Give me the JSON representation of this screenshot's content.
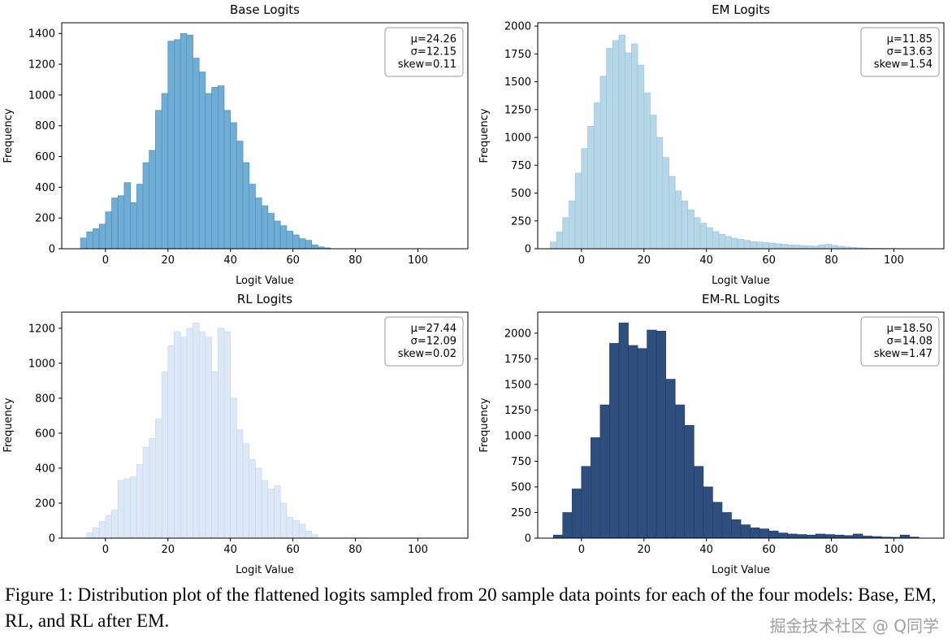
{
  "figure": {
    "caption": "Figure 1: Distribution plot of the flattened logits sampled from 20 sample data points for each of the four models: Base, EM, RL, and RL after EM.",
    "watermark": "掘金技术社区 @ Q同学"
  },
  "chart_data": [
    {
      "type": "histogram",
      "title": "Base Logits",
      "xlabel": "Logit Value",
      "ylabel": "Frequency",
      "stats": {
        "mu": "μ=24.26",
        "sigma": "σ=12.15",
        "skew": "skew=0.11"
      },
      "color": "#6fadd4",
      "edge_color": "#4f92bd",
      "xlim": [
        -14,
        116
      ],
      "ylim": [
        0,
        1470
      ],
      "xticks": [
        0,
        20,
        40,
        60,
        80,
        100
      ],
      "yticks": [
        0,
        200,
        400,
        600,
        800,
        1000,
        1200,
        1400
      ],
      "bin_start": -8,
      "bin_width": 2,
      "values": [
        70,
        110,
        130,
        160,
        240,
        330,
        345,
        430,
        300,
        420,
        560,
        640,
        900,
        1010,
        1350,
        1360,
        1400,
        1390,
        1240,
        1150,
        1010,
        1050,
        1060,
        900,
        820,
        700,
        560,
        420,
        330,
        280,
        230,
        180,
        150,
        115,
        90,
        65,
        55,
        25,
        12,
        6
      ]
    },
    {
      "type": "histogram",
      "title": "EM Logits",
      "xlabel": "Logit Value",
      "ylabel": "Frequency",
      "stats": {
        "mu": "μ=11.85",
        "sigma": "σ=13.63",
        "skew": "skew=1.54"
      },
      "color": "#b5d7e8",
      "edge_color": "#9fc6db",
      "xlim": [
        -14,
        116
      ],
      "ylim": [
        0,
        2030
      ],
      "xticks": [
        0,
        20,
        40,
        60,
        80,
        100
      ],
      "yticks": [
        0,
        250,
        500,
        750,
        1000,
        1250,
        1500,
        1750,
        2000
      ],
      "bin_start": -10,
      "bin_width": 2,
      "values": [
        60,
        150,
        280,
        430,
        680,
        900,
        1100,
        1310,
        1550,
        1800,
        1870,
        1920,
        1760,
        1840,
        1650,
        1400,
        1200,
        1000,
        820,
        650,
        520,
        430,
        350,
        280,
        230,
        190,
        155,
        130,
        110,
        95,
        85,
        75,
        65,
        60,
        55,
        50,
        45,
        40,
        35,
        32,
        28,
        26,
        24,
        35,
        40,
        30,
        22,
        16,
        12,
        8,
        6,
        5,
        4,
        3,
        3,
        2
      ]
    },
    {
      "type": "histogram",
      "title": "RL Logits",
      "xlabel": "Logit Value",
      "ylabel": "Frequency",
      "stats": {
        "mu": "μ=27.44",
        "sigma": "σ=12.09",
        "skew": "skew=0.02"
      },
      "color": "#dce8f6",
      "edge_color": "#c8daee",
      "xlim": [
        -14,
        116
      ],
      "ylim": [
        0,
        1292
      ],
      "xticks": [
        0,
        20,
        40,
        60,
        80,
        100
      ],
      "yticks": [
        0,
        200,
        400,
        600,
        800,
        1000,
        1200
      ],
      "bin_start": -6,
      "bin_width": 2,
      "values": [
        30,
        60,
        95,
        130,
        160,
        330,
        340,
        350,
        420,
        520,
        570,
        680,
        950,
        1100,
        1180,
        1150,
        1200,
        1230,
        1180,
        1150,
        950,
        1200,
        1180,
        800,
        620,
        540,
        450,
        400,
        330,
        280,
        300,
        200,
        120,
        100,
        80,
        40,
        20
      ]
    },
    {
      "type": "histogram",
      "title": "EM-RL Logits",
      "xlabel": "Logit Value",
      "ylabel": "Frequency",
      "stats": {
        "mu": "μ=18.50",
        "sigma": "σ=14.08",
        "skew": "skew=1.47"
      },
      "color": "#2e4e7e",
      "edge_color": "#243f66",
      "xlim": [
        -14,
        116
      ],
      "ylim": [
        0,
        2205
      ],
      "xticks": [
        0,
        20,
        40,
        60,
        80,
        100
      ],
      "yticks": [
        0,
        250,
        500,
        750,
        1000,
        1250,
        1500,
        1750,
        2000
      ],
      "bin_start": -9,
      "bin_width": 3,
      "values": [
        30,
        250,
        480,
        700,
        980,
        1300,
        1900,
        2100,
        1880,
        1850,
        2030,
        2020,
        1550,
        1300,
        1100,
        700,
        500,
        350,
        250,
        180,
        130,
        100,
        90,
        70,
        50,
        40,
        35,
        30,
        40,
        35,
        30,
        25,
        40,
        20,
        15,
        10,
        8,
        30,
        10
      ]
    }
  ]
}
